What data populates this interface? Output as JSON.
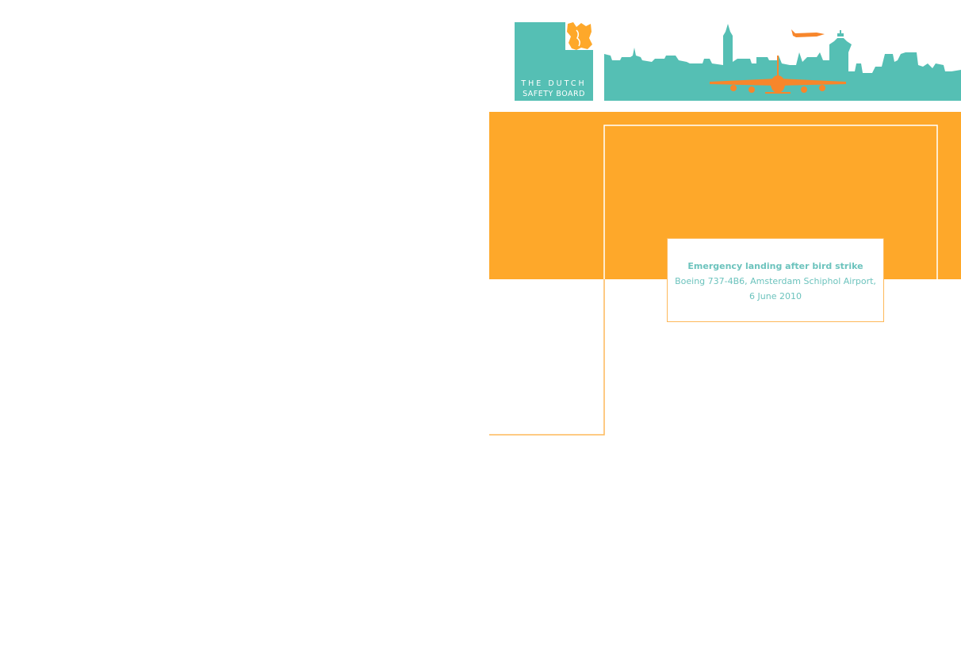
{
  "logo": {
    "line1": "THE DUTCH",
    "line2": "SAFETY BOARD"
  },
  "report": {
    "title": "Emergency landing after bird strike",
    "subtitle_line1": "Boeing 737-4B6, Amsterdam Schiphol Airport,",
    "subtitle_line2": "6 June 2010"
  },
  "colors": {
    "teal": "#55bfb4",
    "orange": "#fea82a",
    "plane_orange": "#f7862b"
  }
}
